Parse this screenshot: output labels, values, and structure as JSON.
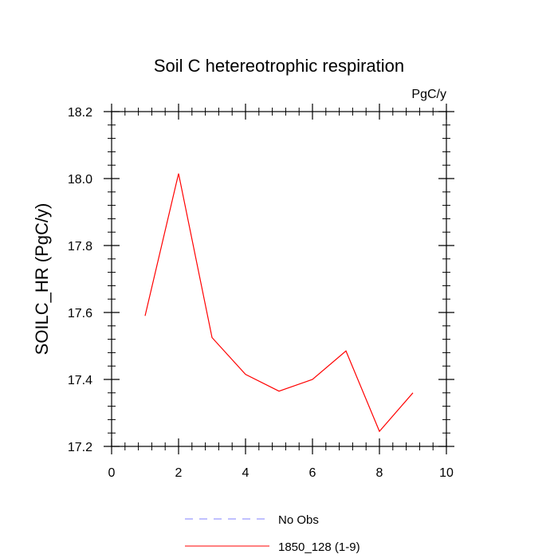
{
  "chart_data": {
    "type": "line",
    "title": "Soil C hetereotrophic respiration",
    "units_label": "PgC/y",
    "xlabel": "",
    "ylabel": "SOILC_HR  (PgC/y)",
    "xlim": [
      0,
      10
    ],
    "ylim": [
      17.2,
      18.2
    ],
    "x_ticks": [
      0,
      2,
      4,
      6,
      8,
      10
    ],
    "x_tick_labels": [
      "0",
      "2",
      "4",
      "6",
      "8",
      "10"
    ],
    "y_ticks": [
      17.2,
      17.4,
      17.6,
      17.8,
      18.0,
      18.2
    ],
    "y_tick_labels": [
      "17.2",
      "17.4",
      "17.6",
      "17.8",
      "18.0",
      "18.2"
    ],
    "grid": false,
    "legend_position": "bottom-center",
    "series": [
      {
        "name": "1850_128 (1-9)",
        "color": "#ff0000",
        "dash": "solid",
        "x": [
          1,
          2,
          3,
          4,
          5,
          6,
          7,
          8,
          9
        ],
        "y": [
          17.59,
          18.015,
          17.525,
          17.415,
          17.365,
          17.4,
          17.485,
          17.245,
          17.36
        ]
      }
    ],
    "legend": [
      {
        "label": "No Obs",
        "color": "#8080ff",
        "dash": "dashed"
      },
      {
        "label": "1850_128 (1-9)",
        "color": "#ff0000",
        "dash": "solid"
      }
    ]
  }
}
